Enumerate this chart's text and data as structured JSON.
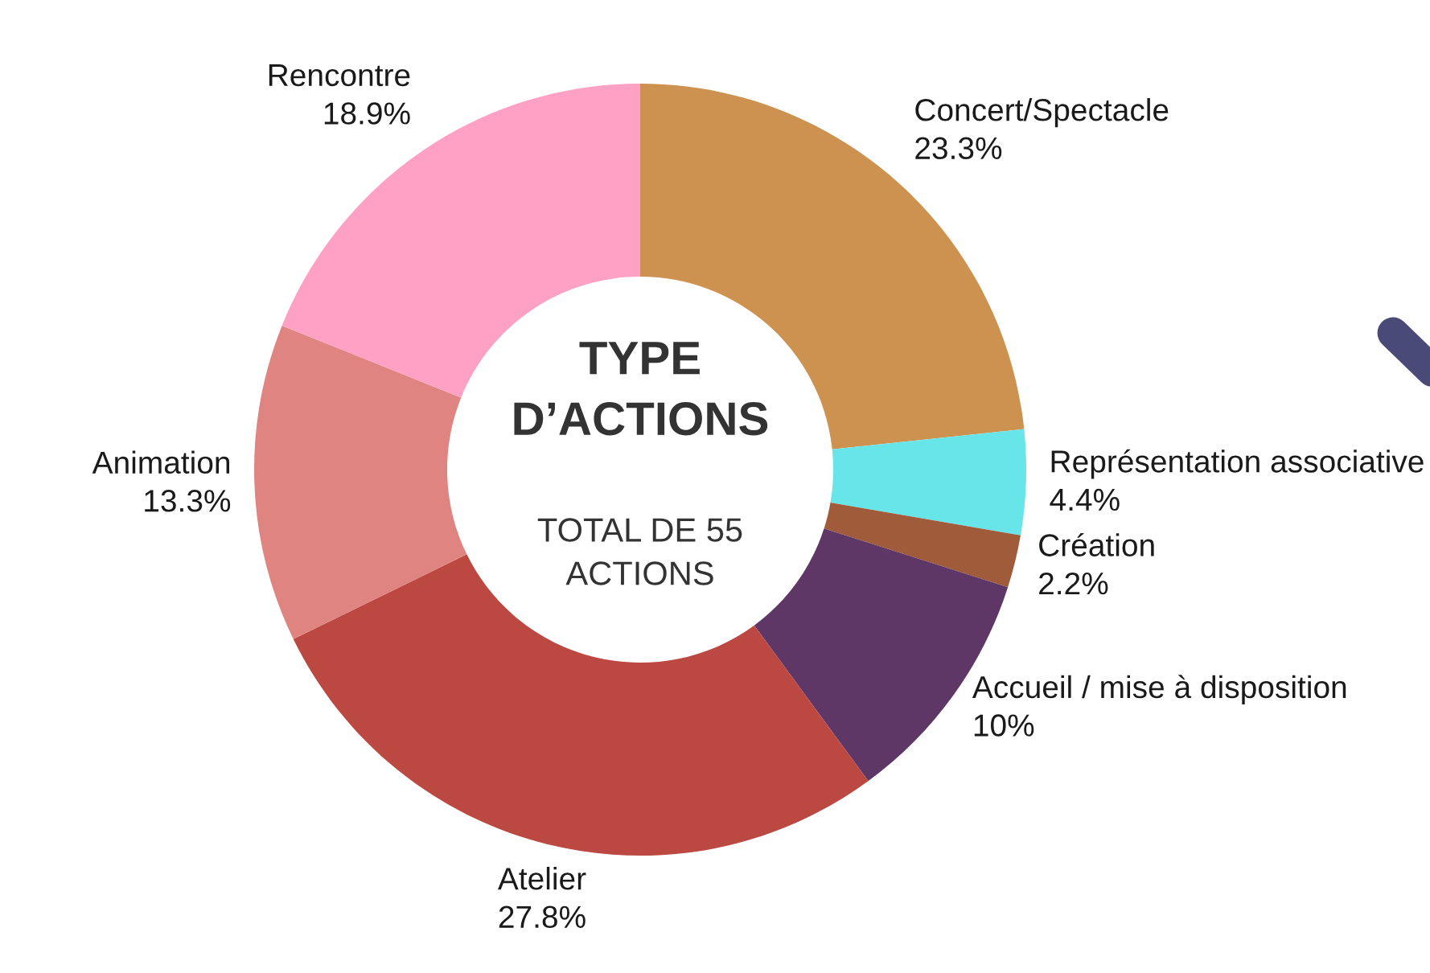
{
  "chart_data": {
    "type": "donut",
    "title": "TYPE D’ACTIONS",
    "subtitle": "TOTAL DE 55 ACTIONS",
    "categories": [
      "Concert/Spectacle",
      "Représentation associative",
      "Création",
      "Accueil / mise à disposition",
      "Atelier",
      "Animation",
      "Rencontre"
    ],
    "values": [
      23.3,
      4.4,
      2.2,
      10,
      27.8,
      13.3,
      18.9
    ],
    "value_labels": [
      "23.3%",
      "4.4%",
      "2.2%",
      "10%",
      "27.8%",
      "13.3%",
      "18.9%"
    ],
    "colors": [
      "#cd9150",
      "#68e5e8",
      "#a05c3a",
      "#5e3766",
      "#bc4842",
      "#e08482",
      "#ffa1c4"
    ]
  }
}
